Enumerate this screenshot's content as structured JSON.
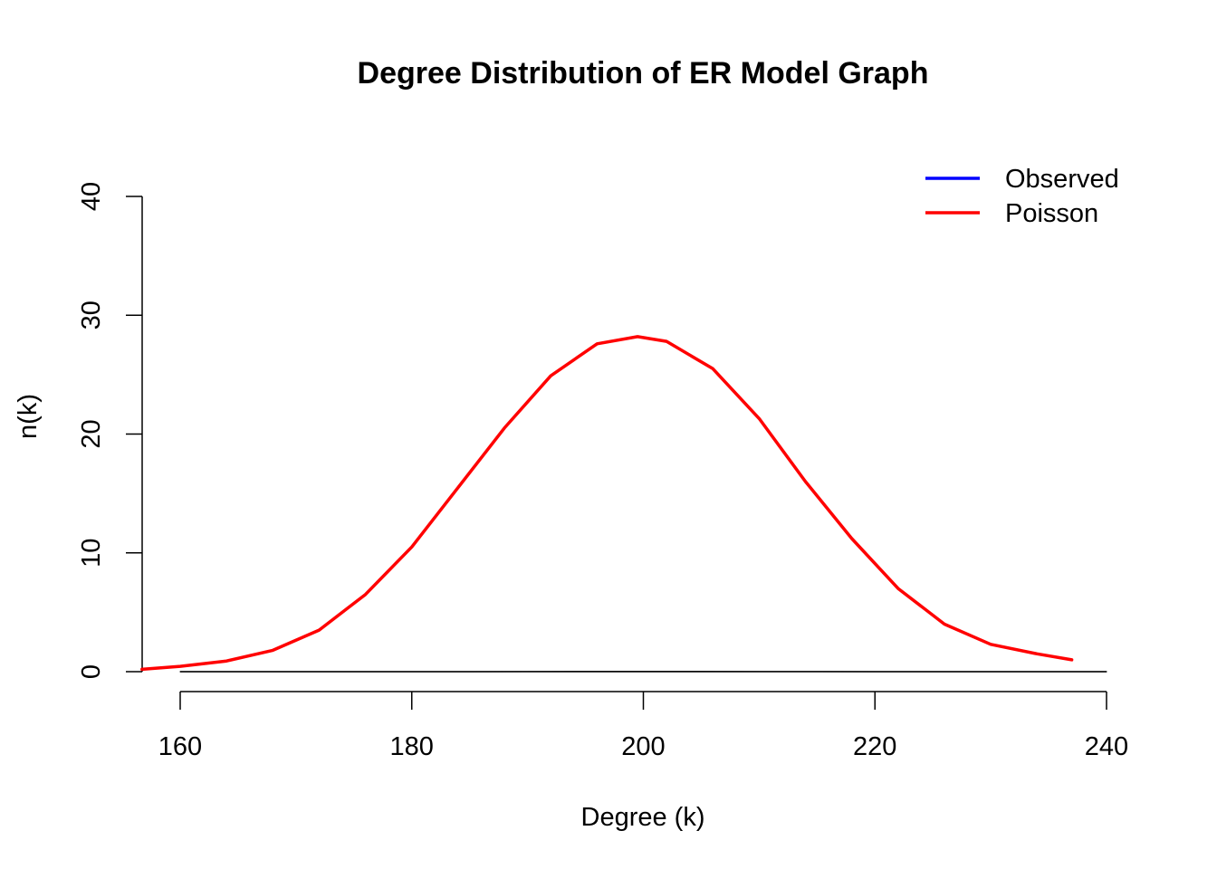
{
  "chart_data": {
    "type": "line",
    "title": "Degree Distribution of ER Model Graph",
    "xlabel": "Degree (k)",
    "ylabel": "n(k)",
    "xlim": [
      156.7,
      240
    ],
    "ylim": [
      0,
      40
    ],
    "x_ticks": [
      160,
      180,
      200,
      220,
      240
    ],
    "y_ticks": [
      0,
      10,
      20,
      30,
      40
    ],
    "grid": false,
    "legend_position": "top-right",
    "series": [
      {
        "name": "Observed",
        "color": "#0000ff",
        "x": [
          160,
          165,
          170,
          175,
          180,
          185,
          190,
          195,
          200,
          205,
          210,
          215,
          220,
          225,
          230,
          235,
          240
        ],
        "y": [
          0,
          0,
          0,
          0,
          0,
          0,
          0.01,
          0.02,
          0.02,
          0.02,
          0.01,
          0.01,
          0,
          0,
          0,
          0,
          0
        ]
      },
      {
        "name": "Poisson",
        "color": "#ff0000",
        "x": [
          156.7,
          160,
          164,
          168,
          172,
          176,
          180,
          184,
          188,
          192,
          196,
          199.5,
          202,
          206,
          210,
          214,
          218,
          222,
          226,
          230,
          234,
          237
        ],
        "y": [
          0.2,
          0.45,
          0.9,
          1.8,
          3.5,
          6.5,
          10.5,
          15.5,
          20.5,
          24.9,
          27.6,
          28.2,
          27.8,
          25.5,
          21.3,
          16.0,
          11.2,
          7.0,
          4.0,
          2.3,
          1.5,
          1.0
        ]
      }
    ],
    "axis_line_color": "#000000"
  }
}
